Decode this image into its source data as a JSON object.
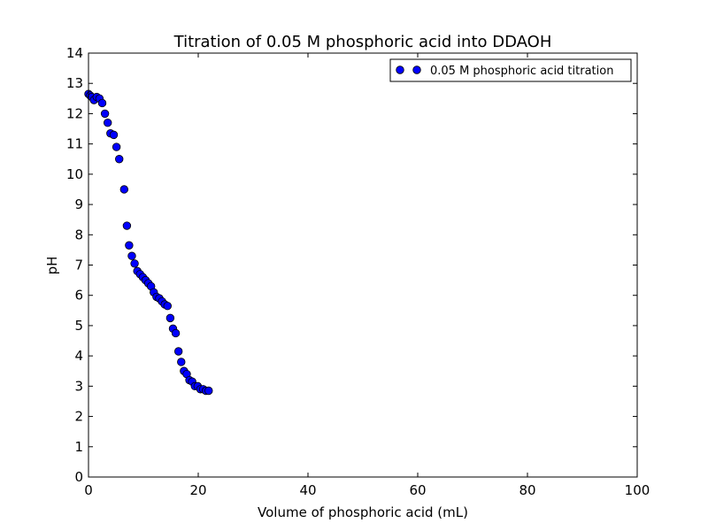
{
  "chart_data": {
    "type": "scatter",
    "title": "Titration of 0.05 M phosphoric acid into DDAOH",
    "xlabel": "Volume of phosphoric acid (mL)",
    "ylabel": "pH",
    "xlim": [
      0,
      100
    ],
    "ylim": [
      0,
      14
    ],
    "xticks": [
      "0",
      "20",
      "40",
      "60",
      "80",
      "100"
    ],
    "yticks": [
      "0",
      "1",
      "2",
      "3",
      "4",
      "5",
      "6",
      "7",
      "8",
      "9",
      "10",
      "11",
      "12",
      "13",
      "14"
    ],
    "grid": false,
    "legend": {
      "position": "top-right",
      "entries": [
        "0.05 M phosphoric acid titration"
      ]
    },
    "series": [
      {
        "name": "0.05 M phosphoric acid titration",
        "color": "#0000ff",
        "marker": "circle",
        "x": [
          0.0,
          0.3,
          0.6,
          1.0,
          1.5,
          2.0,
          2.5,
          3.0,
          3.5,
          4.0,
          4.6,
          5.1,
          5.6,
          6.5,
          7.0,
          7.4,
          7.9,
          8.4,
          8.9,
          9.4,
          9.9,
          10.4,
          10.9,
          11.4,
          11.9,
          12.4,
          12.9,
          13.4,
          13.9,
          14.4,
          14.9,
          15.4,
          15.9,
          16.4,
          16.9,
          17.4,
          17.9,
          18.4,
          18.9,
          19.4,
          19.9,
          20.4,
          20.9,
          21.4,
          21.9
        ],
        "y": [
          12.65,
          12.6,
          12.55,
          12.45,
          12.55,
          12.5,
          12.35,
          12.0,
          11.7,
          11.35,
          11.3,
          10.9,
          10.5,
          9.5,
          8.3,
          7.65,
          7.3,
          7.05,
          6.8,
          6.7,
          6.6,
          6.5,
          6.4,
          6.3,
          6.1,
          5.95,
          5.9,
          5.8,
          5.7,
          5.65,
          5.25,
          4.9,
          4.75,
          4.15,
          3.8,
          3.5,
          3.4,
          3.2,
          3.15,
          3.0,
          3.0,
          2.9,
          2.9,
          2.85,
          2.85
        ]
      }
    ]
  }
}
